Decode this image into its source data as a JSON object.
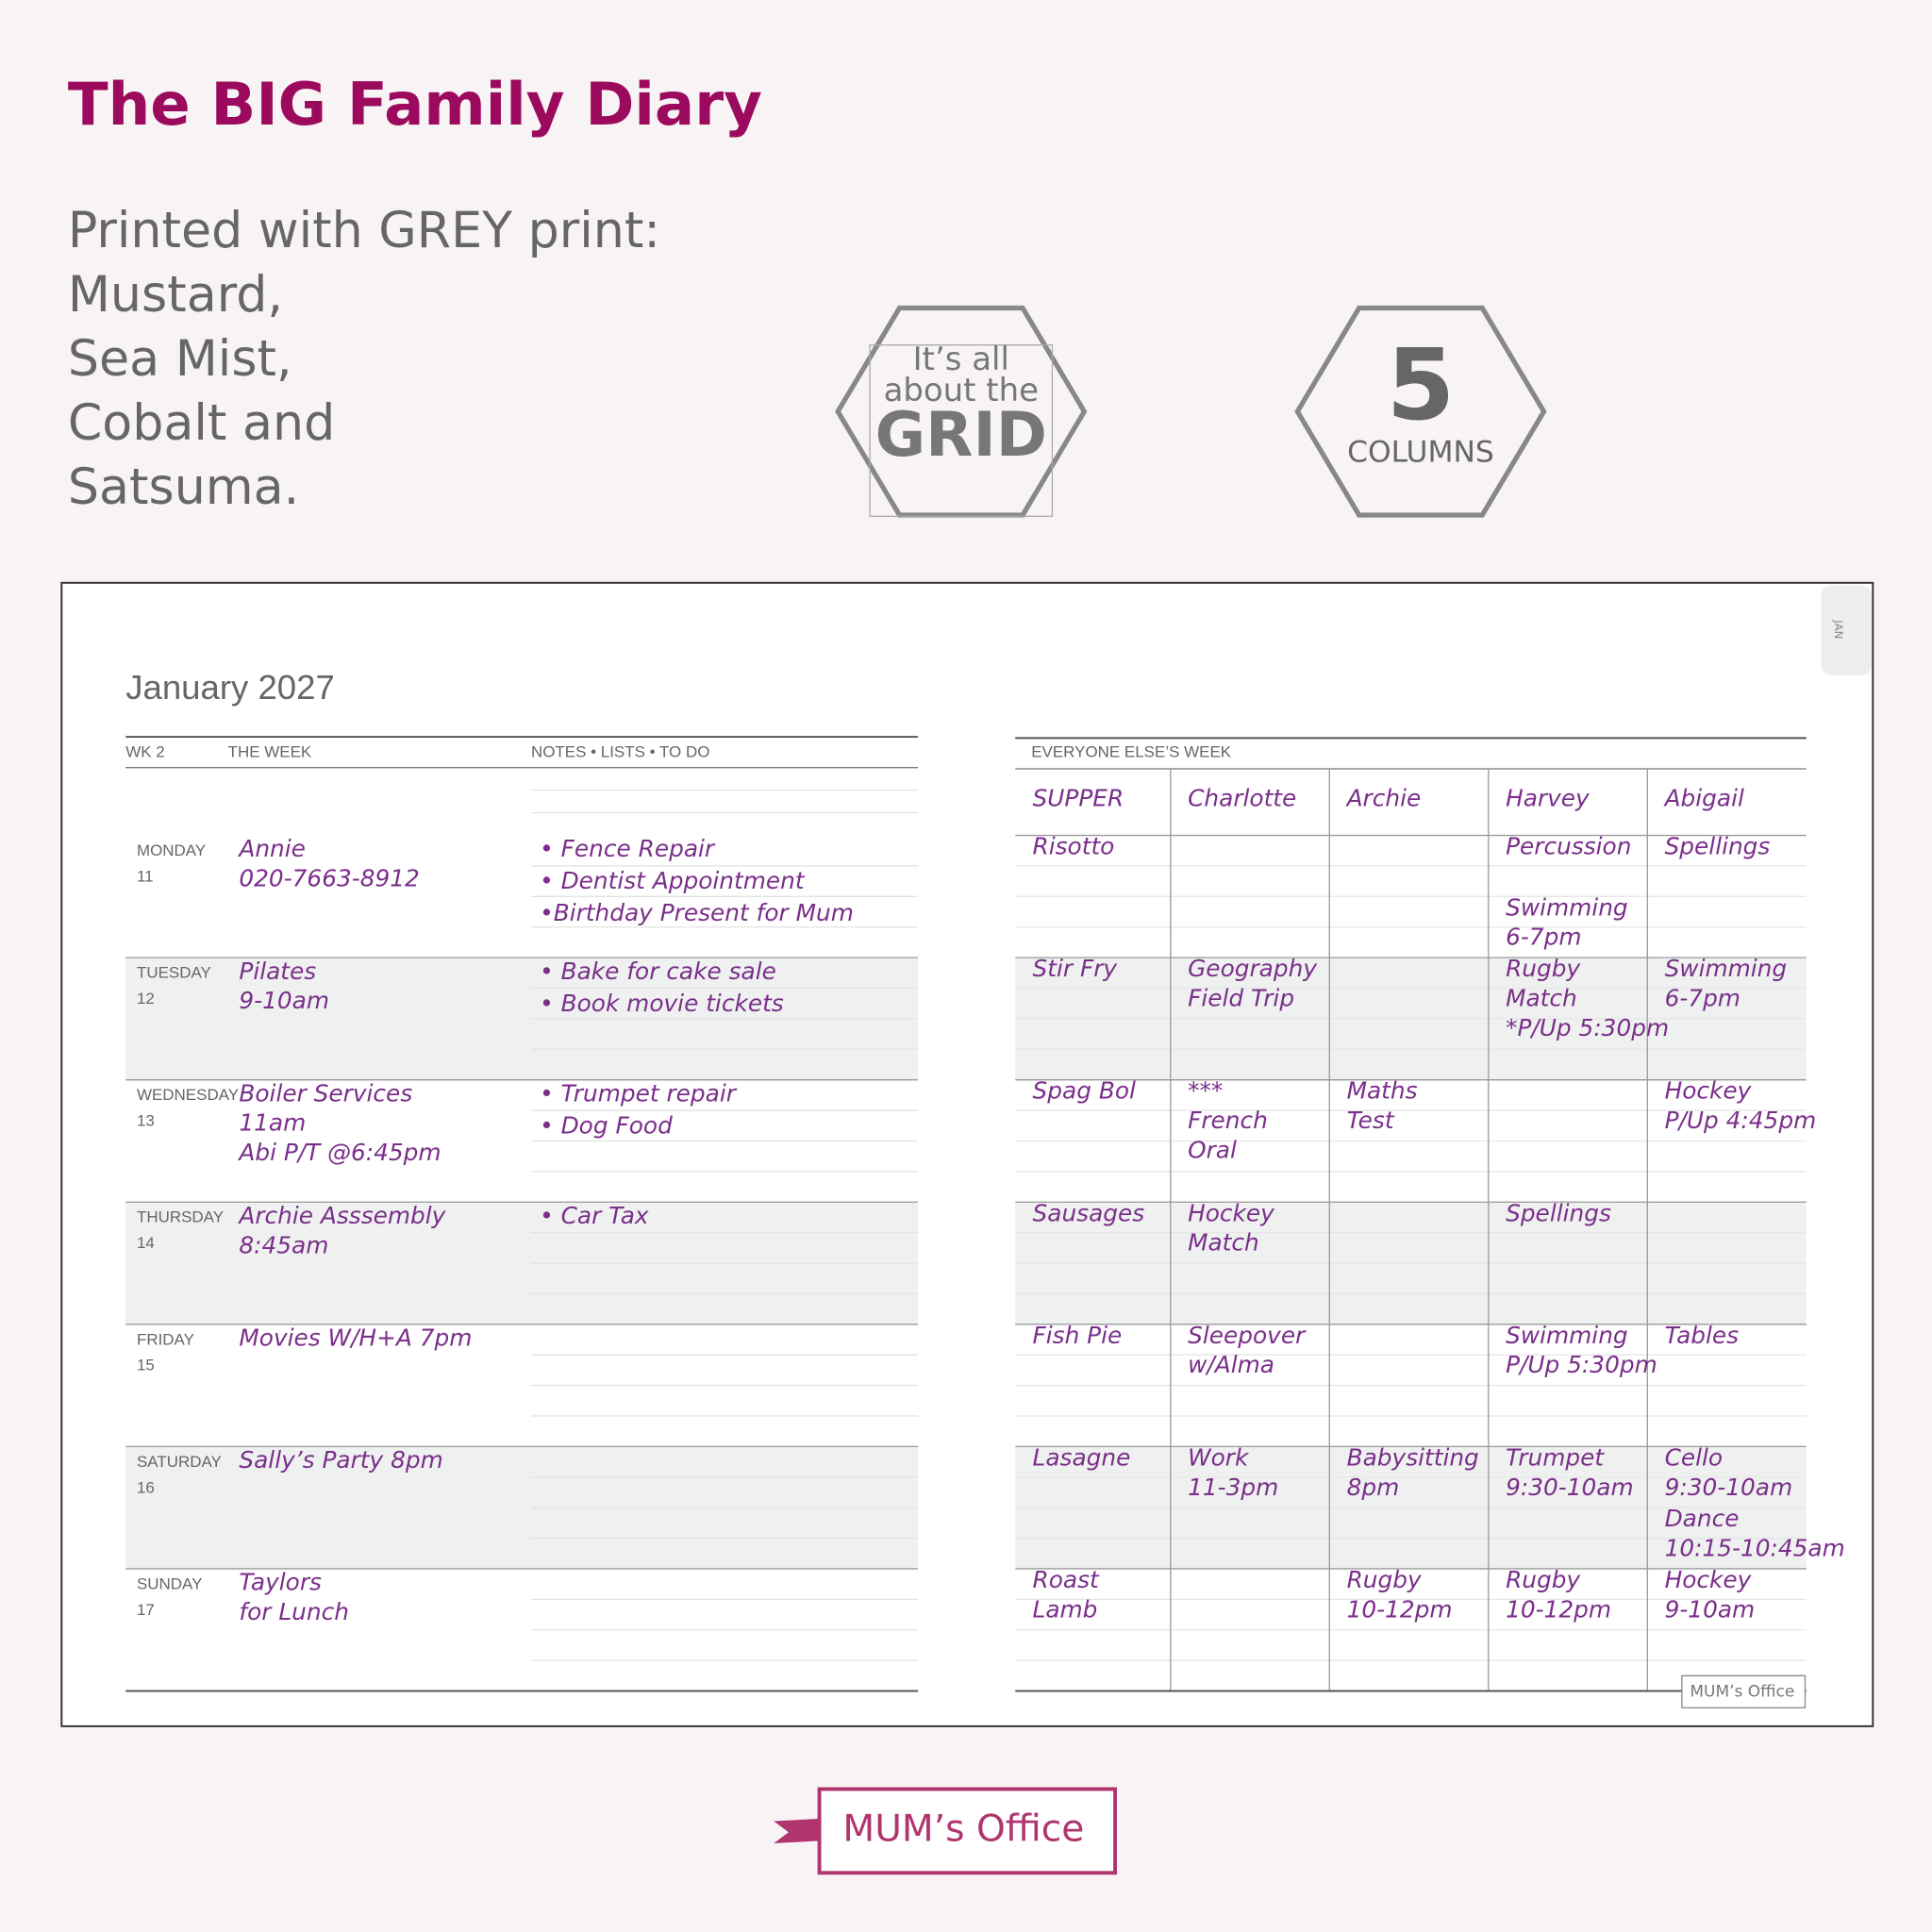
{
  "header": {
    "title": "The BIG Family Diary",
    "description": [
      "Printed with GREY print:",
      "Mustard,",
      "Sea Mist,",
      "Cobalt and",
      "Satsuma."
    ]
  },
  "badges": [
    {
      "lines": [
        "It’s all",
        "about the",
        "GRID"
      ]
    },
    {
      "lines": [
        "5",
        "COLUMNS"
      ]
    }
  ],
  "diary": {
    "month": "January 2027",
    "tab": "JAN",
    "left": {
      "headers": [
        "WK 2",
        "THE WEEK",
        "NOTES • LISTS • TO DO"
      ],
      "days": [
        {
          "name": "MONDAY",
          "date": "11",
          "week": [
            "Annie",
            "020-7663-8912"
          ],
          "notes": [
            "• Fence Repair",
            "• Dentist Appointment",
            "•Birthday Present for Mum"
          ]
        },
        {
          "name": "TUESDAY",
          "date": "12",
          "week": [
            "Pilates",
            "9-10am"
          ],
          "notes": [
            "• Bake for cake sale",
            "• Book movie tickets"
          ]
        },
        {
          "name": "WEDNESDAY",
          "date": "13",
          "week": [
            "Boiler Services",
            "11am",
            "Abi P/T @6:45pm"
          ],
          "notes": [
            "• Trumpet repair",
            "• Dog Food"
          ]
        },
        {
          "name": "THURSDAY",
          "date": "14",
          "week": [
            "Archie Asssembly",
            "8:45am"
          ],
          "notes": [
            "• Car Tax"
          ]
        },
        {
          "name": "FRIDAY",
          "date": "15",
          "week": [
            "Movies W/H+A 7pm"
          ],
          "notes": []
        },
        {
          "name": "SATURDAY",
          "date": "16",
          "week": [
            "Sally’s Party 8pm"
          ],
          "notes": []
        },
        {
          "name": "SUNDAY",
          "date": "17",
          "week": [
            "Taylors",
            "for Lunch"
          ],
          "notes": []
        }
      ]
    },
    "right": {
      "header": "EVERYONE ELSE’S WEEK",
      "columns": [
        "SUPPER",
        "Charlotte",
        "Archie",
        "Harvey",
        "Abigail"
      ],
      "rows": [
        [
          [
            [
              "Risotto"
            ]
          ],
          [],
          [],
          [
            [
              "Percussion"
            ],
            [
              "Swimming",
              "6-7pm"
            ]
          ],
          [
            [
              "Spellings"
            ]
          ]
        ],
        [
          [
            [
              "Stir Fry"
            ]
          ],
          [
            [
              "Geography",
              "Field Trip"
            ]
          ],
          [],
          [
            [
              "Rugby",
              "Match",
              "*P/Up 5:30pm"
            ]
          ],
          [
            [
              "Swimming",
              "6-7pm"
            ]
          ]
        ],
        [
          [
            [
              "Spag Bol"
            ]
          ],
          [
            [
              "***",
              "French",
              "Oral"
            ]
          ],
          [
            [
              "Maths",
              "Test"
            ]
          ],
          [],
          [
            [
              "Hockey",
              "P/Up 4:45pm"
            ]
          ]
        ],
        [
          [
            [
              "Sausages"
            ]
          ],
          [
            [
              "Hockey",
              "Match"
            ]
          ],
          [],
          [
            [
              "Spellings"
            ]
          ],
          []
        ],
        [
          [
            [
              "Fish Pie"
            ]
          ],
          [
            [
              "Sleepover",
              "w/Alma"
            ]
          ],
          [],
          [
            [
              "Swimming",
              "P/Up 5:30pm"
            ]
          ],
          [
            [
              "Tables"
            ]
          ]
        ],
        [
          [
            [
              "Lasagne"
            ]
          ],
          [
            [
              "Work",
              "11-3pm"
            ]
          ],
          [
            [
              "Babysitting",
              "8pm"
            ]
          ],
          [
            [
              "Trumpet",
              "9:30-10am"
            ]
          ],
          [
            [
              "Cello",
              "9:30-10am"
            ],
            [
              "Dance",
              "10:15-10:45am"
            ]
          ]
        ],
        [
          [
            [
              "Roast",
              "Lamb"
            ]
          ],
          [],
          [
            [
              "Rugby",
              "10-12pm"
            ]
          ],
          [
            [
              "Rugby",
              "10-12pm"
            ]
          ],
          [
            [
              "Hockey",
              "9-10am"
            ]
          ]
        ]
      ]
    }
  },
  "footer": {
    "small_logo": "MUM’s Office",
    "logo": "MUM’s Office"
  }
}
